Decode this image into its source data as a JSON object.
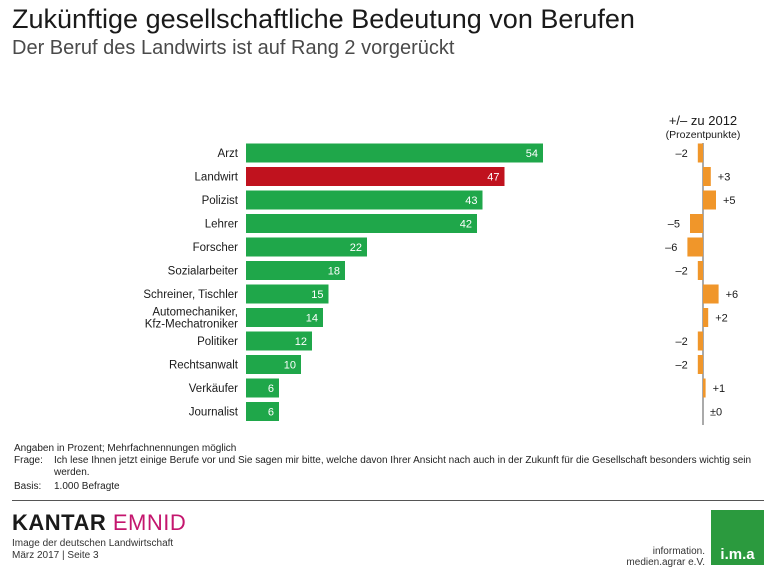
{
  "header": {
    "title": "Zukünftige gesellschaftliche Bedeutung von Berufen",
    "subtitle": "Der Beruf des Landwirts ist auf Rang 2 vorgerückt"
  },
  "colors": {
    "bar_default": "#1fa74a",
    "bar_highlight": "#c0121e",
    "change_bar": "#f0962a"
  },
  "chart_data": [
    {
      "type": "bar",
      "orientation": "horizontal",
      "categories": [
        "Arzt",
        "Landwirt",
        "Polizist",
        "Lehrer",
        "Forscher",
        "Sozialarbeiter",
        "Schreiner, Tischler",
        "Automechaniker,\nKfz-Mechatroniker",
        "Politiker",
        "Rechtsanwalt",
        "Verkäufer",
        "Journalist"
      ],
      "values": [
        54,
        47,
        43,
        42,
        22,
        18,
        15,
        14,
        12,
        10,
        6,
        6
      ],
      "highlight_index": 1,
      "unit": "Prozent"
    },
    {
      "type": "bar",
      "orientation": "horizontal",
      "title": "+/– zu 2012",
      "subtitle": "(Prozentpunkte)",
      "categories": [
        "Arzt",
        "Landwirt",
        "Polizist",
        "Lehrer",
        "Forscher",
        "Sozialarbeiter",
        "Schreiner, Tischler",
        "Automechaniker,\nKfz-Mechatroniker",
        "Politiker",
        "Rechtsanwalt",
        "Verkäufer",
        "Journalist"
      ],
      "values": [
        -2,
        3,
        5,
        -5,
        -6,
        -2,
        6,
        2,
        -2,
        -2,
        1,
        0
      ],
      "labels": [
        "–2",
        "+3",
        "+5",
        "–5",
        "–6",
        "–2",
        "+6",
        "+2",
        "–2",
        "–2",
        "+1",
        "±0"
      ]
    }
  ],
  "notes": {
    "intro": "Angaben in Prozent; Mehrfachnennungen möglich",
    "frage_label": "Frage:",
    "frage_text": "Ich lese Ihnen jetzt einige Berufe vor und Sie sagen mir bitte, welche davon Ihrer Ansicht nach auch in der Zukunft für die Gesellschaft besonders wichtig sein werden.",
    "basis_label": "Basis:",
    "basis_text": "1.000 Befragte"
  },
  "footer": {
    "brand_part1": "KANTAR",
    "brand_part2": "EMNID",
    "study": "Image der deutschen Landwirtschaft",
    "date_page": "März 2017 | Seite 3",
    "ima_text_line1": "information.",
    "ima_text_line2": "medien.agrar e.V.",
    "ima_logo": "i.m.a"
  }
}
